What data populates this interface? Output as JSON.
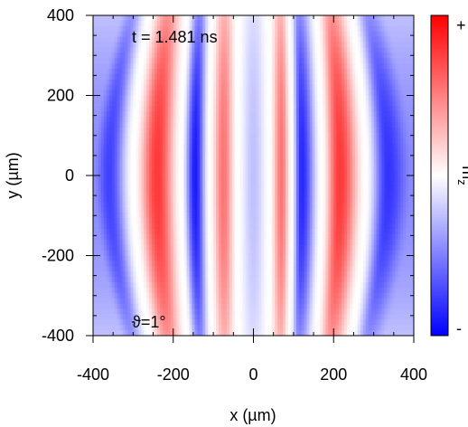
{
  "chart_data": {
    "type": "heatmap",
    "title": "",
    "xlabel": "x (µm)",
    "ylabel": "y (µm)",
    "xlim": [
      -400,
      400
    ],
    "ylim": [
      -400,
      400
    ],
    "x_ticks": [
      -400,
      -200,
      0,
      200,
      400
    ],
    "y_ticks": [
      400,
      200,
      0,
      -200,
      -400
    ],
    "x_tick_labels": [
      "-400",
      "-200",
      "0",
      "200",
      "400"
    ],
    "y_tick_labels": [
      "400",
      "200",
      "0",
      "-200",
      "-400"
    ],
    "grid": false,
    "annotations": {
      "time": "t = 1.481 ns",
      "angle": "ϑ=1°"
    },
    "colorbar": {
      "label": "m",
      "label_subscript": "z",
      "max_label": "+",
      "min_label": "-",
      "colors": [
        "#0000ff",
        "#ffffff",
        "#ff0000"
      ]
    },
    "field_bands": [
      {
        "x": -400,
        "value": -0.45
      },
      {
        "x": -360,
        "value": -0.75
      },
      {
        "x": -300,
        "value": 0.0
      },
      {
        "x": -240,
        "value": 0.78
      },
      {
        "x": -180,
        "value": 0.0
      },
      {
        "x": -145,
        "value": -0.9
      },
      {
        "x": -110,
        "value": 0.0
      },
      {
        "x": -75,
        "value": 0.55
      },
      {
        "x": -40,
        "value": 0.0
      },
      {
        "x": 0,
        "value": -0.25
      },
      {
        "x": 40,
        "value": 0.0
      },
      {
        "x": 70,
        "value": 0.55
      },
      {
        "x": 95,
        "value": 0.0
      },
      {
        "x": 120,
        "value": -0.85
      },
      {
        "x": 170,
        "value": 0.0
      },
      {
        "x": 215,
        "value": 0.78
      },
      {
        "x": 280,
        "value": 0.0
      },
      {
        "x": 335,
        "value": -0.8
      },
      {
        "x": 400,
        "value": -0.45
      }
    ]
  }
}
